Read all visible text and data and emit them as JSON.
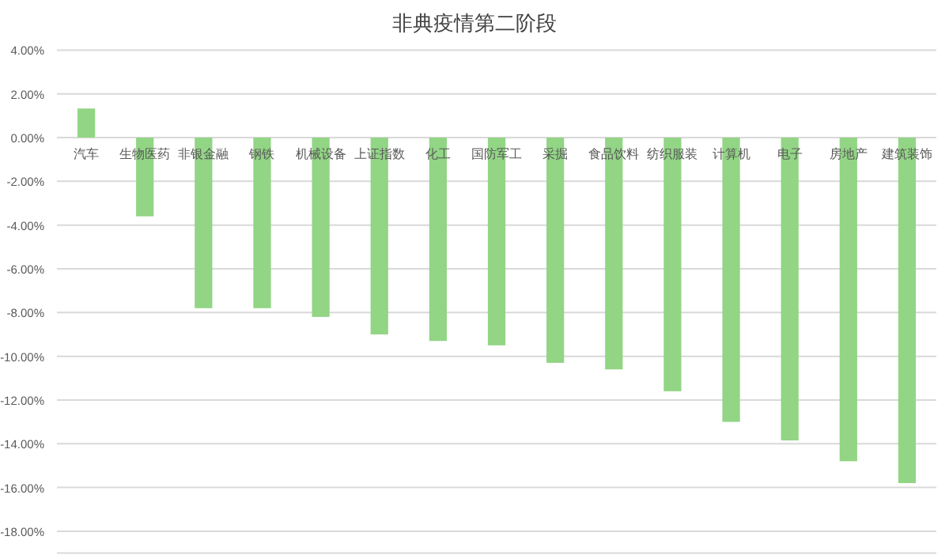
{
  "chart_data": {
    "type": "bar",
    "title": "非典疫情第二阶段",
    "categories": [
      "汽车",
      "生物医药",
      "非银金融",
      "钢铁",
      "机械设备",
      "上证指数",
      "化工",
      "国防军工",
      "采掘",
      "食品饮料",
      "纺织服装",
      "计算机",
      "电子",
      "房地产",
      "建筑装饰"
    ],
    "values": [
      1.33,
      -3.6,
      -7.8,
      -7.8,
      -8.2,
      -9.0,
      -9.3,
      -9.5,
      -10.3,
      -10.6,
      -11.6,
      -13.0,
      -13.85,
      -14.8,
      -15.8
    ],
    "color": "#92d585",
    "ylim": [
      -19,
      4
    ],
    "yticks": [
      {
        "value": 4,
        "label": "4.00%"
      },
      {
        "value": 2,
        "label": "2.00%"
      },
      {
        "value": 0,
        "label": "0.00%"
      },
      {
        "value": -2,
        "label": "-2.00%"
      },
      {
        "value": -4,
        "label": "-4.00%"
      },
      {
        "value": -6,
        "label": "-6.00%"
      },
      {
        "value": -8,
        "label": "-8.00%"
      },
      {
        "value": -10,
        "label": "-10.00%"
      },
      {
        "value": -12,
        "label": "-12.00%"
      },
      {
        "value": -14,
        "label": "-14.00%"
      },
      {
        "value": -16,
        "label": "-16.00%"
      },
      {
        "value": -18,
        "label": "-18.00%"
      }
    ],
    "grid": "y"
  }
}
